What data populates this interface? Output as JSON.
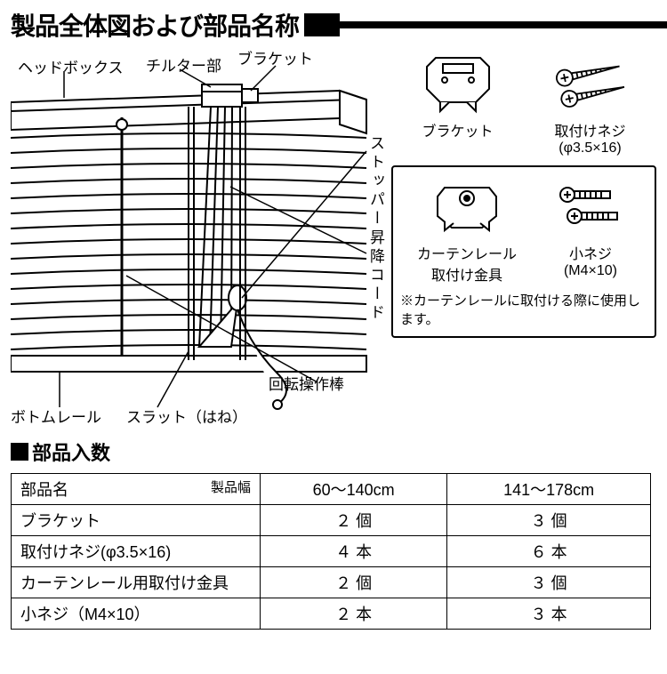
{
  "colors": {
    "ink": "#000000",
    "paper": "#ffffff"
  },
  "title": "製品全体図および部品名称",
  "labels": {
    "headbox": "ヘッドボックス",
    "tilter": "チルター部",
    "bracket_label": "ブラケット",
    "stopper": "ストッパー",
    "cord": "昇降コード",
    "wand": "回転操作棒",
    "bottomrail": "ボトムレール",
    "slat": "スラット（はね）"
  },
  "parts": {
    "bracket": {
      "name": "ブラケット"
    },
    "screw1": {
      "name": "取付けネジ",
      "spec": "(φ3.5×16)"
    },
    "railfix": {
      "name1": "カーテンレール",
      "name2": "取付け金具"
    },
    "screw2": {
      "name": "小ネジ",
      "spec": "(M4×10)"
    },
    "note": "※カーテンレールに取付ける際に使用します。"
  },
  "section2": "部品入数",
  "table": {
    "headers": [
      "部品名",
      "60～140cm",
      "141～178cm"
    ],
    "header_label": "製品幅",
    "rows": [
      [
        "ブラケット",
        "２ 個",
        "３ 個"
      ],
      [
        "取付けネジ(φ3.5×16)",
        "４ 本",
        "６ 本"
      ],
      [
        "カーテンレール用取付け金具",
        "２ 個",
        "３ 個"
      ],
      [
        "小ネジ（M4×10）",
        "２ 本",
        "３ 本"
      ]
    ]
  }
}
